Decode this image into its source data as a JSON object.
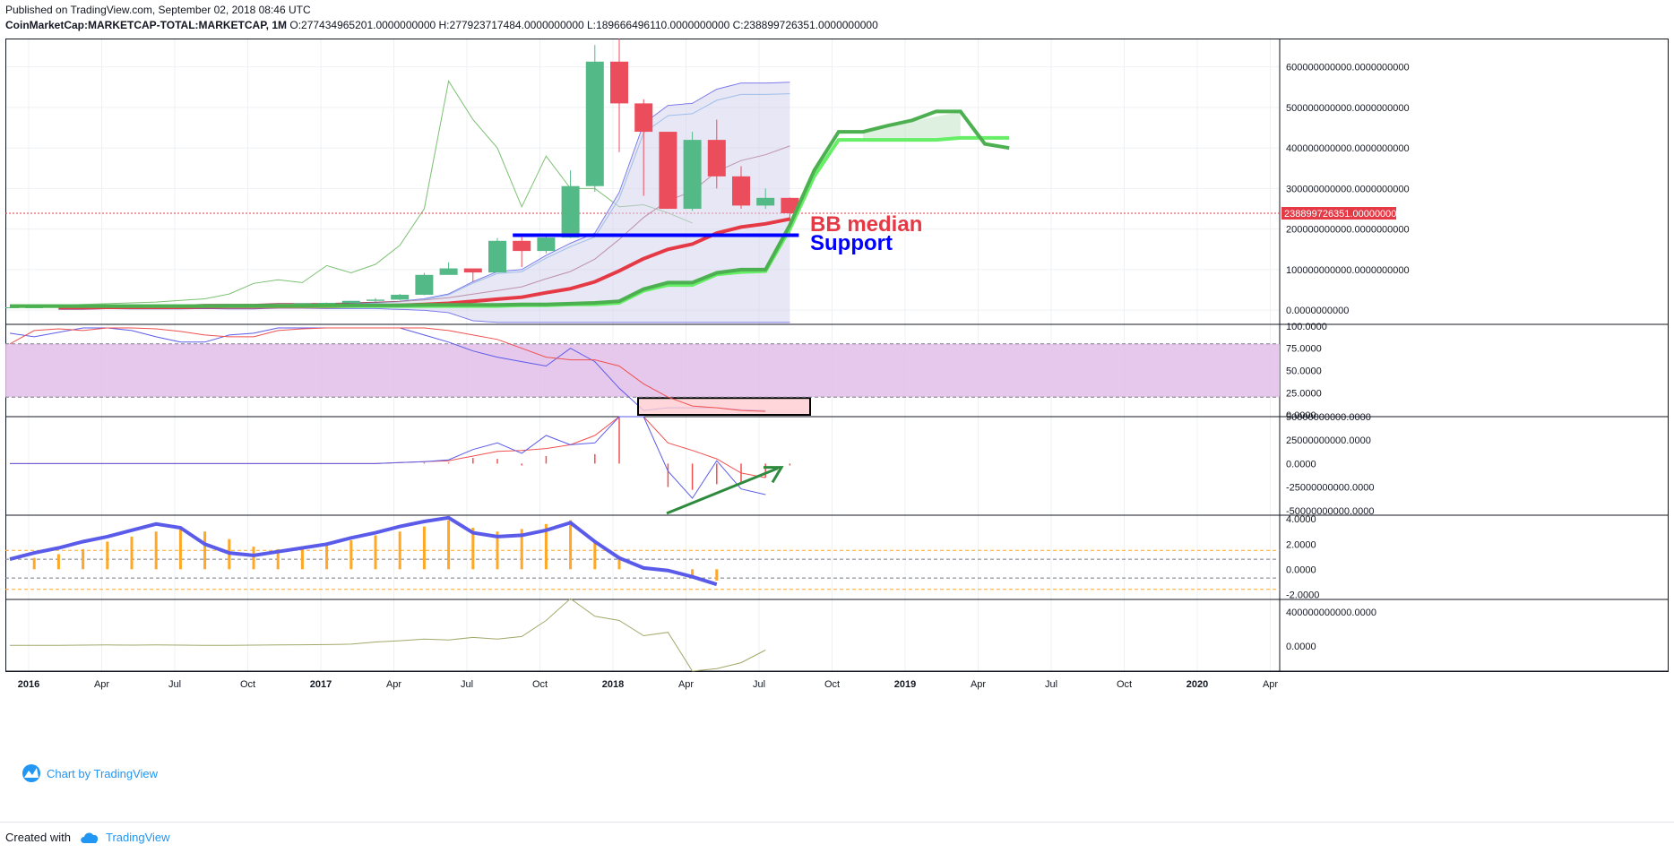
{
  "header": {
    "published": "Published on TradingView.com, September 02, 2018 08:46 UTC",
    "symbol": "CoinMarketCap:MARKETCAP-TOTAL:MARKETCAP, 1M",
    "ohlc": "O:277434965201.0000000000 H:277923717484.0000000000 L:189666496110.0000000000 C:238899726351.0000000000"
  },
  "footer": {
    "created_with": "Created with",
    "brand": "TradingView"
  },
  "watermark": "Chart by TradingView",
  "annotations": {
    "bb_median": "BB median",
    "support": "Support"
  },
  "last_price_label": "238899726351.0000000000",
  "colors": {
    "up": "#53b987",
    "down": "#eb4d5c",
    "bb_median": "#e53945",
    "support": "#0000ff",
    "cloud_line": "#4caf50",
    "rsi_band": "#e1bee7",
    "hist": "#ffa726",
    "oscillator": "#5b5bea",
    "arrow": "#2e8b3e"
  },
  "chart_data": [
    {
      "type": "candlestick",
      "title": "",
      "timeframe": "1M",
      "x_tick_labels": [
        "2016",
        "Apr",
        "Jul",
        "Oct",
        "2017",
        "Apr",
        "Jul",
        "Oct",
        "2018",
        "Apr",
        "Jul",
        "Oct",
        "2019",
        "Apr",
        "Jul",
        "Oct",
        "2020",
        "Apr"
      ],
      "y_tick_labels": [
        "600000000000.0000000000",
        "500000000000.0000000000",
        "400000000000.0000000000",
        "300000000000.0000000000",
        "200000000000.0000000000",
        "100000000000.0000000000",
        "0.0000000000"
      ],
      "ylim": [
        -35000000000,
        670000000000
      ],
      "candles": [
        {
          "t": "2015-12",
          "o": 5,
          "h": 7,
          "l": 5,
          "c": 7
        },
        {
          "t": "2016-01",
          "o": 7,
          "h": 8,
          "l": 6,
          "c": 7
        },
        {
          "t": "2016-02",
          "o": 7,
          "h": 8,
          "l": 6,
          "c": 8
        },
        {
          "t": "2016-03",
          "o": 8,
          "h": 9,
          "l": 7,
          "c": 8
        },
        {
          "t": "2016-04",
          "o": 8,
          "h": 9,
          "l": 7,
          "c": 8
        },
        {
          "t": "2016-05",
          "o": 8,
          "h": 10,
          "l": 8,
          "c": 9
        },
        {
          "t": "2016-06",
          "o": 9,
          "h": 12,
          "l": 9,
          "c": 11
        },
        {
          "t": "2016-07",
          "o": 11,
          "h": 12,
          "l": 10,
          "c": 11
        },
        {
          "t": "2016-08",
          "o": 11,
          "h": 12,
          "l": 10,
          "c": 10
        },
        {
          "t": "2016-09",
          "o": 10,
          "h": 11,
          "l": 10,
          "c": 11
        },
        {
          "t": "2016-10",
          "o": 11,
          "h": 12,
          "l": 10,
          "c": 12
        },
        {
          "t": "2016-11",
          "o": 12,
          "h": 13,
          "l": 11,
          "c": 12
        },
        {
          "t": "2016-12",
          "o": 12,
          "h": 17,
          "l": 12,
          "c": 17
        },
        {
          "t": "2017-01",
          "o": 17,
          "h": 19,
          "l": 15,
          "c": 18
        },
        {
          "t": "2017-02",
          "o": 18,
          "h": 23,
          "l": 17,
          "c": 23
        },
        {
          "t": "2017-03",
          "o": 23,
          "h": 30,
          "l": 20,
          "c": 26
        },
        {
          "t": "2017-04",
          "o": 26,
          "h": 40,
          "l": 25,
          "c": 38
        },
        {
          "t": "2017-05",
          "o": 38,
          "h": 92,
          "l": 37,
          "c": 87
        },
        {
          "t": "2017-06",
          "o": 87,
          "h": 118,
          "l": 88,
          "c": 103
        },
        {
          "t": "2017-07",
          "o": 103,
          "h": 101,
          "l": 70,
          "c": 93
        },
        {
          "t": "2017-08",
          "o": 93,
          "h": 178,
          "l": 95,
          "c": 171
        },
        {
          "t": "2017-09",
          "o": 171,
          "h": 180,
          "l": 106,
          "c": 146
        },
        {
          "t": "2017-10",
          "o": 146,
          "h": 182,
          "l": 140,
          "c": 179
        },
        {
          "t": "2017-11",
          "o": 179,
          "h": 345,
          "l": 178,
          "c": 306
        },
        {
          "t": "2017-12",
          "o": 306,
          "h": 654,
          "l": 292,
          "c": 613
        },
        {
          "t": "2018-01",
          "o": 613,
          "h": 690,
          "l": 390,
          "c": 510
        },
        {
          "t": "2018-02",
          "o": 510,
          "h": 520,
          "l": 282,
          "c": 440
        },
        {
          "t": "2018-03",
          "o": 440,
          "h": 440,
          "l": 250,
          "c": 250
        },
        {
          "t": "2018-04",
          "o": 250,
          "h": 440,
          "l": 245,
          "c": 420
        },
        {
          "t": "2018-05",
          "o": 420,
          "h": 470,
          "l": 300,
          "c": 330
        },
        {
          "t": "2018-06",
          "o": 330,
          "h": 355,
          "l": 250,
          "c": 258
        },
        {
          "t": "2018-07",
          "o": 258,
          "h": 300,
          "l": 250,
          "c": 277
        },
        {
          "t": "2018-08",
          "o": 277,
          "h": 278,
          "l": 190,
          "c": 239
        }
      ],
      "value_scale_note": "candle o/h/l/c are in billions of USD",
      "bb_upper": [
        10,
        10,
        10,
        11,
        11,
        11,
        12,
        13,
        13,
        13,
        13,
        14,
        16,
        18,
        22,
        28,
        40,
        70,
        95,
        100,
        135,
        165,
        190,
        290,
        460,
        505,
        510,
        545,
        560,
        560,
        562
      ],
      "bb_basis": [
        6,
        6,
        7,
        7,
        7,
        7,
        8,
        8,
        8,
        9,
        9,
        9,
        10,
        11,
        12,
        14,
        17,
        22,
        27,
        32,
        43,
        53,
        70,
        97,
        127,
        150,
        163,
        190,
        205,
        213,
        225
      ],
      "support_level": 185,
      "cloud_future": [
        10,
        10,
        10,
        10,
        10,
        10,
        10,
        10,
        10,
        11,
        11,
        11,
        11,
        12,
        12,
        12,
        12,
        13,
        13,
        13,
        13,
        14,
        14,
        16,
        18,
        22,
        52,
        68,
        68,
        92,
        100,
        100,
        210,
        345,
        440,
        440,
        455,
        468,
        490,
        490,
        410,
        400
      ],
      "cloud_future_b": [
        10,
        10,
        10,
        10,
        10,
        10,
        10,
        10,
        10,
        10,
        10,
        10,
        10,
        10,
        10,
        10,
        10,
        10,
        10,
        10,
        10,
        12,
        12,
        14,
        14,
        18,
        48,
        62,
        62,
        88,
        94,
        96,
        200,
        330,
        420,
        420,
        420,
        420,
        420,
        425,
        425,
        425
      ]
    },
    {
      "type": "line",
      "title": "",
      "y_tick_labels": [
        "100.0000",
        "75.0000",
        "50.0000",
        "25.0000",
        "0.0000"
      ],
      "ylim": [
        0,
        100
      ],
      "band": [
        20,
        80
      ],
      "series": [
        {
          "values": [
            80,
            95,
            97,
            95,
            98,
            98,
            97,
            94,
            90,
            88,
            88,
            95,
            97,
            98,
            98,
            98,
            98,
            98,
            95,
            90,
            85,
            75,
            65,
            62,
            62,
            55,
            35,
            20,
            10,
            8,
            5,
            4
          ]
        },
        {
          "values": [
            92,
            88,
            93,
            98,
            98,
            95,
            88,
            82,
            82,
            90,
            92,
            98,
            98,
            98,
            98,
            98,
            98,
            90,
            82,
            72,
            65,
            60,
            55,
            75,
            60,
            30,
            5,
            8,
            8,
            8,
            6,
            5
          ]
        }
      ],
      "highlight_box_range": [
        0,
        19
      ]
    },
    {
      "type": "line",
      "title": "",
      "y_tick_labels": [
        "50000000000.0000",
        "25000000000.0000",
        "0.0000",
        "-25000000000.0000",
        "-50000000000.0000"
      ],
      "ylim": [
        -55000000000,
        50000000000
      ],
      "series": [
        {
          "values": [
            0,
            0,
            0,
            0,
            0,
            0,
            0,
            0,
            0,
            0,
            0,
            0,
            0,
            0,
            0,
            0,
            1,
            2,
            3,
            8,
            13,
            14,
            16,
            20,
            30,
            60,
            80,
            22,
            14,
            5,
            -10,
            -15
          ]
        },
        {
          "values": [
            0,
            0,
            0,
            0,
            0,
            0,
            0,
            0,
            0,
            0,
            0,
            0,
            0,
            0,
            0,
            0,
            1,
            2,
            4,
            15,
            22,
            11,
            30,
            20,
            22,
            50,
            80,
            -8,
            -37,
            3,
            -27,
            -33
          ]
        }
      ],
      "value_scale_note": "series values in billions",
      "histogram": [
        0,
        0,
        0,
        0,
        0,
        0,
        0,
        0,
        0,
        0,
        0,
        0,
        0,
        0,
        0,
        0,
        0,
        1,
        1,
        6,
        5,
        -2,
        8,
        0,
        10,
        50,
        0,
        -25,
        -28,
        -22,
        -20,
        -15,
        -2
      ]
    },
    {
      "type": "bar",
      "title": "",
      "y_tick_labels": [
        "4.0000",
        "2.0000",
        "0.0000",
        "-2.0000"
      ],
      "ylim": [
        -2.4,
        4.3
      ],
      "histogram": [
        0.9,
        1.2,
        1.6,
        2.2,
        2.6,
        3.0,
        3.3,
        3.0,
        2.4,
        1.8,
        1.6,
        1.8,
        2.0,
        2.3,
        2.7,
        3.0,
        3.4,
        3.9,
        3.3,
        3.0,
        3.2,
        3.6,
        3.9,
        2.1,
        0.9,
        0.0,
        -0.2,
        -0.6,
        -0.9
      ],
      "series": [
        {
          "values": [
            0.8,
            1.3,
            1.7,
            2.2,
            2.6,
            3.1,
            3.6,
            3.3,
            2.0,
            1.3,
            1.1,
            1.4,
            1.7,
            2.0,
            2.5,
            2.9,
            3.4,
            3.8,
            4.1,
            2.9,
            2.6,
            2.7,
            3.1,
            3.7,
            2.2,
            0.9,
            0.1,
            -0.1,
            -0.6,
            -1.2
          ]
        }
      ],
      "dashed_levels": [
        1.5,
        0.8,
        -0.7,
        -1.6
      ]
    },
    {
      "type": "line",
      "title": "",
      "y_tick_labels": [
        "400000000000.0000",
        "0.0000"
      ],
      "ylim": [
        -300000000000,
        550000000000
      ],
      "series": [
        {
          "values": [
            5,
            5,
            5,
            8,
            10,
            8,
            10,
            8,
            6,
            6,
            8,
            10,
            12,
            14,
            20,
            45,
            60,
            80,
            70,
            100,
            80,
            110,
            300,
            560,
            350,
            300,
            120,
            160,
            -300,
            -270,
            -200,
            -50
          ]
        }
      ],
      "value_scale_note": "series values in billions"
    }
  ]
}
